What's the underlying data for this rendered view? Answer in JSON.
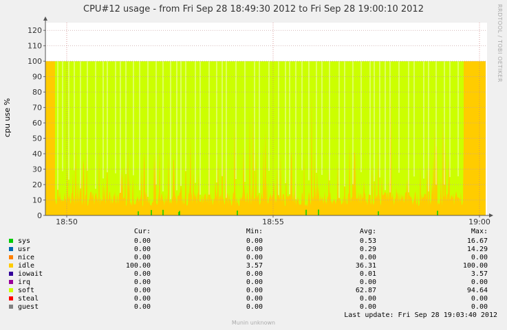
{
  "chart_data": {
    "type": "area",
    "title": "CPU#12 usage - from Fri Sep 28 18:49:30 2012 to Fri Sep 28 19:00:10 2012",
    "ylabel": "cpu use %",
    "xlabel": "",
    "ylim": [
      0,
      125
    ],
    "yticks": [
      0,
      10,
      20,
      30,
      40,
      50,
      60,
      70,
      80,
      90,
      100,
      110,
      120
    ],
    "xticks": [
      "18:50",
      "18:55",
      "19:00"
    ],
    "stacked": true,
    "grid": true,
    "series": [
      {
        "name": "sys",
        "color": "#00cc00"
      },
      {
        "name": "usr",
        "color": "#0066b3"
      },
      {
        "name": "nice",
        "color": "#ff8000"
      },
      {
        "name": "idle",
        "color": "#ffcc00"
      },
      {
        "name": "iowait",
        "color": "#330099"
      },
      {
        "name": "irq",
        "color": "#990099"
      },
      {
        "name": "soft",
        "color": "#ccff00"
      },
      {
        "name": "steal",
        "color": "#ff0000"
      },
      {
        "name": "guest",
        "color": "#808080"
      }
    ]
  },
  "legend": {
    "headers": {
      "cur": "Cur:",
      "min": "Min:",
      "avg": "Avg:",
      "max": "Max:"
    },
    "rows": [
      {
        "name": "sys",
        "color": "#00cc00",
        "cur": "0.00",
        "min": "0.00",
        "avg": "0.53",
        "max": "16.67"
      },
      {
        "name": "usr",
        "color": "#0066b3",
        "cur": "0.00",
        "min": "0.00",
        "avg": "0.29",
        "max": "14.29"
      },
      {
        "name": "nice",
        "color": "#ff8000",
        "cur": "0.00",
        "min": "0.00",
        "avg": "0.00",
        "max": "0.00"
      },
      {
        "name": "idle",
        "color": "#ffcc00",
        "cur": "100.00",
        "min": "3.57",
        "avg": "36.31",
        "max": "100.00"
      },
      {
        "name": "iowait",
        "color": "#330099",
        "cur": "0.00",
        "min": "0.00",
        "avg": "0.01",
        "max": "3.57"
      },
      {
        "name": "irq",
        "color": "#990099",
        "cur": "0.00",
        "min": "0.00",
        "avg": "0.00",
        "max": "0.00"
      },
      {
        "name": "soft",
        "color": "#ccff00",
        "cur": "0.00",
        "min": "0.00",
        "avg": "62.87",
        "max": "94.64"
      },
      {
        "name": "steal",
        "color": "#ff0000",
        "cur": "0.00",
        "min": "0.00",
        "avg": "0.00",
        "max": "0.00"
      },
      {
        "name": "guest",
        "color": "#808080",
        "cur": "0.00",
        "min": "0.00",
        "avg": "0.00",
        "max": "0.00"
      }
    ]
  },
  "last_update": "Last update: Fri Sep 28 19:03:40 2012",
  "footer": "Munin unknown",
  "watermark": "RRDTOOL / TOBI OETIKER"
}
